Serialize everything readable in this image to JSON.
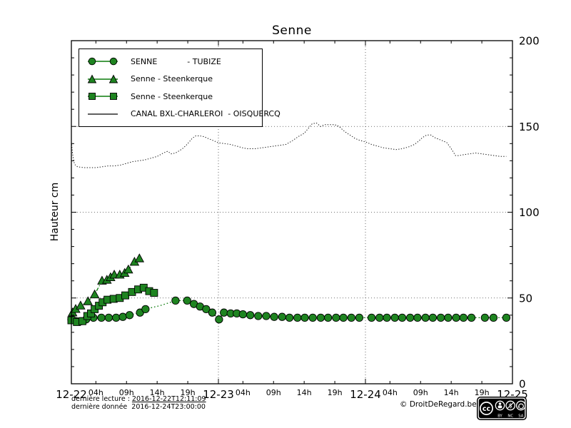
{
  "title": "Senne",
  "ylabel": "Hauteur cm",
  "legend": {
    "items": [
      {
        "label": "SENNE            - TUBIZE",
        "marker": "circle"
      },
      {
        "label": "Senne - Steenkerque",
        "marker": "triangle"
      },
      {
        "label": "Senne - Steenkerque",
        "marker": "square"
      },
      {
        "label": "CANAL BXL-CHARLEROI  - OISQUERCQ",
        "marker": "line"
      }
    ]
  },
  "footer": {
    "line1_label": "dernière lecture : ",
    "line1_value": "2016-12-22T12:11:09",
    "line2_label": "dernière donnée  ",
    "line2_value": "2016-12-24T23:00:00",
    "copyright": "© DroitDeRegard.be",
    "license": {
      "cc": "cc",
      "labels": [
        "BY",
        "NC",
        "SA"
      ]
    }
  },
  "chart_data": {
    "type": "line",
    "title": "Senne",
    "ylabel": "Hauteur cm",
    "ylim": [
      0,
      200
    ],
    "y_major_ticks": [
      0,
      50,
      100,
      150,
      200
    ],
    "y_minor_step": 10,
    "x_range_hours": [
      0,
      72
    ],
    "x_major_ticks": [
      {
        "h": 0,
        "label": "12-22"
      },
      {
        "h": 24,
        "label": "12-23"
      },
      {
        "h": 48,
        "label": "12-24"
      },
      {
        "h": 72,
        "label": "12-25"
      }
    ],
    "x_minor_ticks": [
      {
        "h": 4,
        "label": "04h"
      },
      {
        "h": 9,
        "label": "09h"
      },
      {
        "h": 14,
        "label": "14h"
      },
      {
        "h": 19,
        "label": "19h"
      },
      {
        "h": 28,
        "label": "04h"
      },
      {
        "h": 33,
        "label": "09h"
      },
      {
        "h": 38,
        "label": "14h"
      },
      {
        "h": 43,
        "label": "19h"
      },
      {
        "h": 52,
        "label": "04h"
      },
      {
        "h": 57,
        "label": "09h"
      },
      {
        "h": 62,
        "label": "14h"
      },
      {
        "h": 67,
        "label": "19h"
      }
    ],
    "grid": {
      "h_values": [
        50,
        100,
        150
      ],
      "v_hours": [
        24,
        48
      ]
    },
    "legend_position": "upper left",
    "units": "cm",
    "series": [
      {
        "name": "SENNE - TUBIZE",
        "marker": "circle",
        "line": "dotted",
        "color": "#0c7c0c",
        "fill": "#1e8420",
        "width": 1.3,
        "points": [
          [
            0,
            37.5,
            1
          ],
          [
            0.8,
            36.5,
            1
          ],
          [
            1.6,
            36.5,
            1
          ],
          [
            2.4,
            37.5,
            1
          ],
          [
            3.6,
            38.5,
            1
          ],
          [
            4.9,
            38.5,
            1
          ],
          [
            6.1,
            38.5,
            1
          ],
          [
            7.3,
            38.5,
            1
          ],
          [
            8.4,
            39,
            1
          ],
          [
            9.5,
            40,
            1
          ],
          [
            11.2,
            41.5,
            1
          ],
          [
            12.1,
            43.5,
            1
          ],
          [
            13.2,
            44.5,
            0
          ],
          [
            14.4,
            45.5,
            0
          ],
          [
            15.6,
            46.8,
            0
          ],
          [
            17,
            48.5,
            1
          ],
          [
            18.9,
            48.5,
            1
          ],
          [
            20,
            46.5,
            1
          ],
          [
            21,
            45,
            1
          ],
          [
            22,
            43.5,
            1
          ],
          [
            23,
            41.5,
            1
          ],
          [
            24.1,
            37.5,
            1
          ],
          [
            24.9,
            41.5,
            1
          ],
          [
            26,
            41,
            1
          ],
          [
            27,
            41,
            1
          ],
          [
            28,
            40.5,
            1
          ],
          [
            29.2,
            40,
            1
          ],
          [
            30.5,
            39.5,
            1
          ],
          [
            31.8,
            39.5,
            1
          ],
          [
            33.1,
            39,
            1
          ],
          [
            34.4,
            39,
            1
          ],
          [
            35.6,
            38.5,
            1
          ],
          [
            36.9,
            38.5,
            1
          ],
          [
            38.1,
            38.5,
            1
          ],
          [
            39.4,
            38.5,
            1
          ],
          [
            40.7,
            38.5,
            1
          ],
          [
            41.9,
            38.5,
            1
          ],
          [
            43.2,
            38.5,
            1
          ],
          [
            44.4,
            38.5,
            1
          ],
          [
            45.7,
            38.5,
            1
          ],
          [
            47,
            38.5,
            1
          ],
          [
            49,
            38.5,
            1
          ],
          [
            50.3,
            38.5,
            1
          ],
          [
            51.5,
            38.5,
            1
          ],
          [
            52.8,
            38.5,
            1
          ],
          [
            54,
            38.5,
            1
          ],
          [
            55.3,
            38.5,
            1
          ],
          [
            56.5,
            38.5,
            1
          ],
          [
            57.8,
            38.5,
            1
          ],
          [
            59,
            38.5,
            1
          ],
          [
            60.3,
            38.5,
            1
          ],
          [
            61.5,
            38.5,
            1
          ],
          [
            62.8,
            38.5,
            1
          ],
          [
            64,
            38.5,
            1
          ],
          [
            65.3,
            38.5,
            1
          ],
          [
            67.5,
            38.5,
            1
          ],
          [
            68.9,
            38.5,
            1
          ],
          [
            71,
            38.5,
            1
          ]
        ]
      },
      {
        "name": "Senne - Steenkerque",
        "marker": "triangle",
        "line": "dashdot",
        "color": "#0c7c0c",
        "fill": "#1e8420",
        "width": 1.3,
        "points": [
          [
            0.2,
            41.5,
            1
          ],
          [
            0.7,
            43.5,
            1
          ],
          [
            1.5,
            45.5,
            1
          ],
          [
            2.7,
            48,
            1
          ],
          [
            3.8,
            52,
            1
          ],
          [
            5,
            60,
            1
          ],
          [
            5.8,
            60.5,
            1
          ],
          [
            6.4,
            62,
            1
          ],
          [
            7,
            63.5,
            1
          ],
          [
            7.9,
            63.5,
            1
          ],
          [
            8.7,
            64.5,
            1
          ],
          [
            9.3,
            66.5,
            1
          ],
          [
            10.3,
            71,
            1
          ],
          [
            11.1,
            73,
            1
          ]
        ]
      },
      {
        "name": "Senne - Steenkerque",
        "marker": "square",
        "line": "dashed",
        "color": "#0c7c0c",
        "fill": "#1e8420",
        "width": 1.3,
        "points": [
          [
            0,
            37,
            1
          ],
          [
            0.9,
            36,
            1
          ],
          [
            1.8,
            36.5,
            1
          ],
          [
            2.6,
            39.5,
            1
          ],
          [
            3.2,
            41,
            1
          ],
          [
            3.8,
            43.5,
            1
          ],
          [
            4.5,
            45.5,
            1
          ],
          [
            5.1,
            47.5,
            1
          ],
          [
            5.9,
            49,
            1
          ],
          [
            6.9,
            49.5,
            1
          ],
          [
            7.9,
            50,
            1
          ],
          [
            8.8,
            51.5,
            1
          ],
          [
            9.9,
            53.5,
            1
          ],
          [
            10.9,
            55,
            1
          ],
          [
            11.8,
            56,
            1
          ],
          [
            12.7,
            54,
            1
          ],
          [
            13.5,
            53,
            1
          ]
        ]
      },
      {
        "name": "CANAL BXL-CHARLEROI - OISQUERCQ",
        "marker": "none",
        "line": "dotted-fine",
        "color": "#111111",
        "fill": "none",
        "width": 1,
        "points": [
          [
            0,
            141,
            0
          ],
          [
            0.2,
            134,
            0
          ],
          [
            0.5,
            128,
            0
          ],
          [
            1,
            126.5,
            0
          ],
          [
            2,
            126,
            0
          ],
          [
            3,
            126,
            0
          ],
          [
            4,
            126,
            0
          ],
          [
            5,
            126.5,
            0
          ],
          [
            6,
            127,
            0
          ],
          [
            7,
            127,
            0
          ],
          [
            8,
            127.5,
            0
          ],
          [
            9,
            128.5,
            0
          ],
          [
            10,
            129.5,
            0
          ],
          [
            11,
            130,
            0
          ],
          [
            12,
            130.5,
            0
          ],
          [
            13,
            131.5,
            0
          ],
          [
            14,
            132.5,
            0
          ],
          [
            15,
            134.5,
            0
          ],
          [
            15.7,
            135.5,
            0
          ],
          [
            16.3,
            134,
            0
          ],
          [
            17,
            134.5,
            0
          ],
          [
            17.7,
            136,
            0
          ],
          [
            18.3,
            137.5,
            0
          ],
          [
            19,
            140,
            0
          ],
          [
            19.7,
            143,
            0
          ],
          [
            20.3,
            144.5,
            0
          ],
          [
            21,
            144.5,
            0
          ],
          [
            21.7,
            144,
            0
          ],
          [
            22.3,
            143,
            0
          ],
          [
            23,
            142,
            0
          ],
          [
            24,
            140.5,
            0
          ],
          [
            25,
            140,
            0
          ],
          [
            26,
            139.5,
            0
          ],
          [
            27,
            138.5,
            0
          ],
          [
            28,
            137.5,
            0
          ],
          [
            28.7,
            137,
            0
          ],
          [
            30,
            137,
            0
          ],
          [
            31,
            137.5,
            0
          ],
          [
            32,
            138,
            0
          ],
          [
            33,
            138.5,
            0
          ],
          [
            34,
            139,
            0
          ],
          [
            35,
            139.5,
            0
          ],
          [
            36,
            141.5,
            0
          ],
          [
            37,
            144,
            0
          ],
          [
            38,
            146,
            0
          ],
          [
            38.7,
            149,
            0
          ],
          [
            39.3,
            151.5,
            0
          ],
          [
            40,
            152,
            0
          ],
          [
            40.7,
            150,
            0
          ],
          [
            41.3,
            151,
            0
          ],
          [
            42,
            151,
            0
          ],
          [
            43,
            151,
            0
          ],
          [
            43.7,
            150,
            0
          ],
          [
            44.3,
            148,
            0
          ],
          [
            45,
            146,
            0
          ],
          [
            45.7,
            144.5,
            0
          ],
          [
            46.3,
            143,
            0
          ],
          [
            47,
            142,
            0
          ],
          [
            48,
            141,
            0
          ],
          [
            49,
            139.5,
            0
          ],
          [
            50,
            138.5,
            0
          ],
          [
            51,
            137.5,
            0
          ],
          [
            52,
            137,
            0
          ],
          [
            53,
            136.5,
            0
          ],
          [
            54,
            137,
            0
          ],
          [
            55,
            138,
            0
          ],
          [
            56,
            139.5,
            0
          ],
          [
            56.7,
            141.5,
            0
          ],
          [
            57.3,
            143.5,
            0
          ],
          [
            58,
            145,
            0
          ],
          [
            58.7,
            145,
            0
          ],
          [
            59.3,
            143.5,
            0
          ],
          [
            60,
            142.5,
            0
          ],
          [
            60.7,
            141.5,
            0
          ],
          [
            61.3,
            140.5,
            0
          ],
          [
            62,
            137,
            0
          ],
          [
            62.7,
            133,
            0
          ],
          [
            63.3,
            133,
            0
          ],
          [
            64,
            133.5,
            0
          ],
          [
            65,
            134,
            0
          ],
          [
            66,
            134.5,
            0
          ],
          [
            67,
            134,
            0
          ],
          [
            68,
            133.5,
            0
          ],
          [
            69,
            133,
            0
          ],
          [
            70,
            132.5,
            0
          ],
          [
            71,
            132.5,
            0
          ]
        ]
      }
    ]
  }
}
